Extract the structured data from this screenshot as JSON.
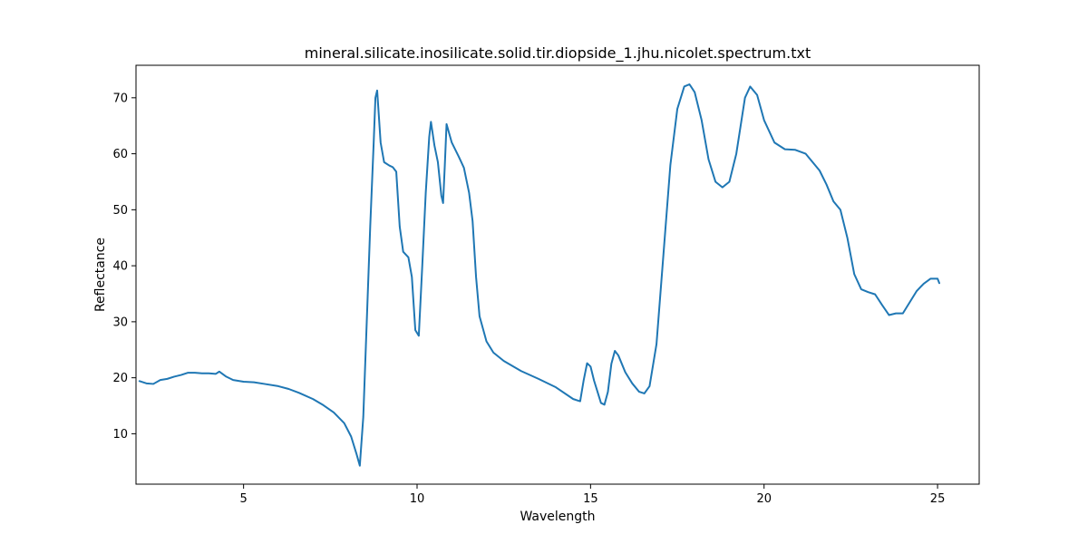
{
  "chart_data": {
    "type": "line",
    "title": "mineral.silicate.inosilicate.solid.tir.diopside_1.jhu.nicolet.spectrum.txt",
    "xlabel": "Wavelength",
    "ylabel": "Reflectance",
    "xlim": [
      1.9,
      26.2
    ],
    "ylim": [
      1.0,
      75.8
    ],
    "xticks": [
      5,
      10,
      15,
      20,
      25
    ],
    "yticks": [
      10,
      20,
      30,
      40,
      50,
      60,
      70
    ],
    "grid": false,
    "colors": {
      "series": "#1f77b4"
    },
    "series": [
      {
        "x": [
          2.0,
          2.2,
          2.4,
          2.6,
          2.8,
          3.0,
          3.2,
          3.4,
          3.6,
          3.8,
          4.0,
          4.2,
          4.3,
          4.5,
          4.7,
          5.0,
          5.3,
          5.6,
          6.0,
          6.3,
          6.6,
          7.0,
          7.3,
          7.6,
          7.9,
          8.1,
          8.25,
          8.35,
          8.45,
          8.55,
          8.65,
          8.75,
          8.8,
          8.85,
          8.95,
          9.05,
          9.2,
          9.3,
          9.4,
          9.5,
          9.6,
          9.75,
          9.85,
          9.95,
          10.05,
          10.15,
          10.25,
          10.35,
          10.4,
          10.5,
          10.6,
          10.7,
          10.75,
          10.8,
          10.85,
          11.0,
          11.2,
          11.35,
          11.5,
          11.6,
          11.7,
          11.8,
          12.0,
          12.2,
          12.5,
          13.0,
          13.5,
          14.0,
          14.5,
          14.7,
          14.8,
          14.9,
          15.0,
          15.1,
          15.2,
          15.3,
          15.4,
          15.5,
          15.6,
          15.7,
          15.8,
          16.0,
          16.2,
          16.4,
          16.55,
          16.7,
          16.9,
          17.1,
          17.3,
          17.5,
          17.7,
          17.85,
          18.0,
          18.2,
          18.4,
          18.6,
          18.8,
          19.0,
          19.2,
          19.45,
          19.6,
          19.8,
          20.0,
          20.3,
          20.6,
          20.9,
          21.2,
          21.4,
          21.6,
          21.8,
          22.0,
          22.2,
          22.4,
          22.6,
          22.8,
          23.0,
          23.2,
          23.4,
          23.6,
          23.8,
          24.0,
          24.2,
          24.4,
          24.6,
          24.8,
          25.0,
          25.05
        ],
        "y": [
          19.4,
          19.0,
          18.9,
          19.6,
          19.8,
          20.2,
          20.5,
          20.9,
          20.9,
          20.8,
          20.8,
          20.7,
          21.1,
          20.2,
          19.6,
          19.3,
          19.2,
          18.9,
          18.5,
          18.0,
          17.3,
          16.2,
          15.1,
          13.8,
          11.9,
          9.5,
          6.5,
          4.3,
          13.0,
          30.0,
          47.0,
          62.0,
          70.0,
          71.3,
          62.0,
          58.5,
          57.9,
          57.6,
          56.8,
          47.0,
          42.5,
          41.5,
          38.0,
          28.5,
          27.5,
          40.0,
          53.0,
          63.0,
          65.7,
          61.5,
          58.5,
          52.5,
          51.2,
          58.0,
          65.3,
          62.0,
          59.5,
          57.5,
          53.0,
          48.0,
          38.0,
          31.0,
          26.5,
          24.5,
          23.0,
          21.2,
          19.8,
          18.3,
          16.2,
          15.8,
          19.5,
          22.6,
          22.0,
          19.5,
          17.5,
          15.5,
          15.2,
          17.5,
          22.5,
          24.8,
          24.0,
          21.0,
          19.0,
          17.5,
          17.2,
          18.5,
          26.0,
          42.0,
          58.0,
          68.0,
          72.0,
          72.4,
          71.0,
          66.0,
          59.0,
          55.0,
          54.0,
          55.0,
          60.0,
          70.0,
          72.0,
          70.5,
          66.0,
          62.0,
          60.8,
          60.7,
          60.0,
          58.5,
          57.0,
          54.5,
          51.5,
          50.0,
          45.0,
          38.5,
          35.8,
          35.3,
          34.9,
          33.0,
          31.2,
          31.5,
          31.5,
          33.5,
          35.5,
          36.8,
          37.7,
          37.7,
          36.9
        ]
      }
    ]
  }
}
